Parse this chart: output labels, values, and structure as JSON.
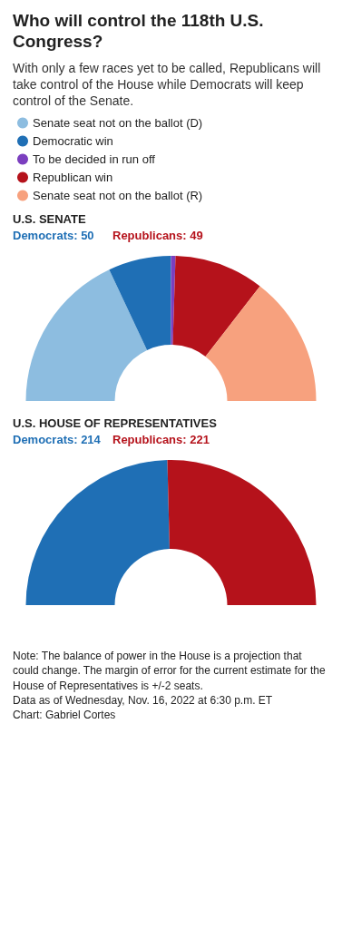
{
  "chart_data": [
    {
      "type": "donut",
      "title": "Who will control the 118th U.S. Congress?",
      "subtitle": "With only a few races yet to be called, Republicans will take control of the House while Democrats will keep control of the Senate.",
      "categories": [
        "Senate seat not on the ballot (D)",
        "Democratic win",
        "To be decided in run off",
        "Republican win",
        "Senate seat not on the ballot (R)"
      ],
      "values": [
        36,
        14,
        1,
        20,
        29
      ],
      "colors": [
        "#8dbde0",
        "#1f6fb5",
        "#7b3fbf",
        "#b5121b",
        "#f7a17e"
      ],
      "legend": "top left",
      "annotations": [
        "U.S. SENATE",
        "Democrats: 50",
        "Republicans: 49"
      ]
    },
    {
      "type": "donut",
      "title": "U.S. HOUSE OF REPRESENTATIVES",
      "categories": [
        null,
        null
      ],
      "values": [
        49.2,
        50.8
      ],
      "colors": [
        "#1f6fb5",
        "#b5121b"
      ],
      "annotations": [
        "Democrats: 214",
        "Republicans: 221",
        "Note: The balance of power in the House is a projection that could change. The margin of error for the current estimate for the House of Representatives is +/-2 seats.",
        "Data as of Wednesday, Nov. 16, 2022 at 6:30 p.m. ET",
        "Chart: Gabriel Cortes"
      ]
    }
  ]
}
